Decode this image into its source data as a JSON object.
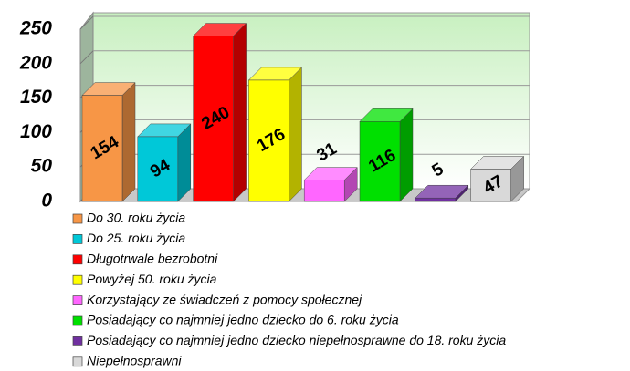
{
  "chart_data": {
    "type": "bar3d",
    "series": [
      {
        "name": "Do 30. roku życia",
        "color": "#f79646",
        "values": [
          154
        ]
      },
      {
        "name": "Do 25. roku życia",
        "color": "#00c8d8",
        "values": [
          94
        ]
      },
      {
        "name": "Długotrwale bezrobotni",
        "color": "#ff0000",
        "values": [
          240
        ]
      },
      {
        "name": "Powyżej 50. roku życia",
        "color": "#ffff00",
        "values": [
          176
        ]
      },
      {
        "name": "Korzystający ze świadczeń z pomocy społecznej",
        "color": "#ff66ff",
        "values": [
          31
        ]
      },
      {
        "name": "Posiadający co najmniej jedno dziecko do 6. roku życia",
        "color": "#00e000",
        "values": [
          116
        ]
      },
      {
        "name": "Posiadający co najmniej jedno dziecko niepełnosprawne do 18. roku życia",
        "color": "#7030a0",
        "values": [
          5
        ]
      },
      {
        "name": "Niepełnosprawni",
        "color": "#d9d9d9",
        "values": [
          47
        ]
      }
    ],
    "ylim": [
      0,
      250
    ],
    "yticks": [
      0,
      50,
      100,
      150,
      200,
      250
    ],
    "grid": true,
    "legend": "bottom"
  }
}
